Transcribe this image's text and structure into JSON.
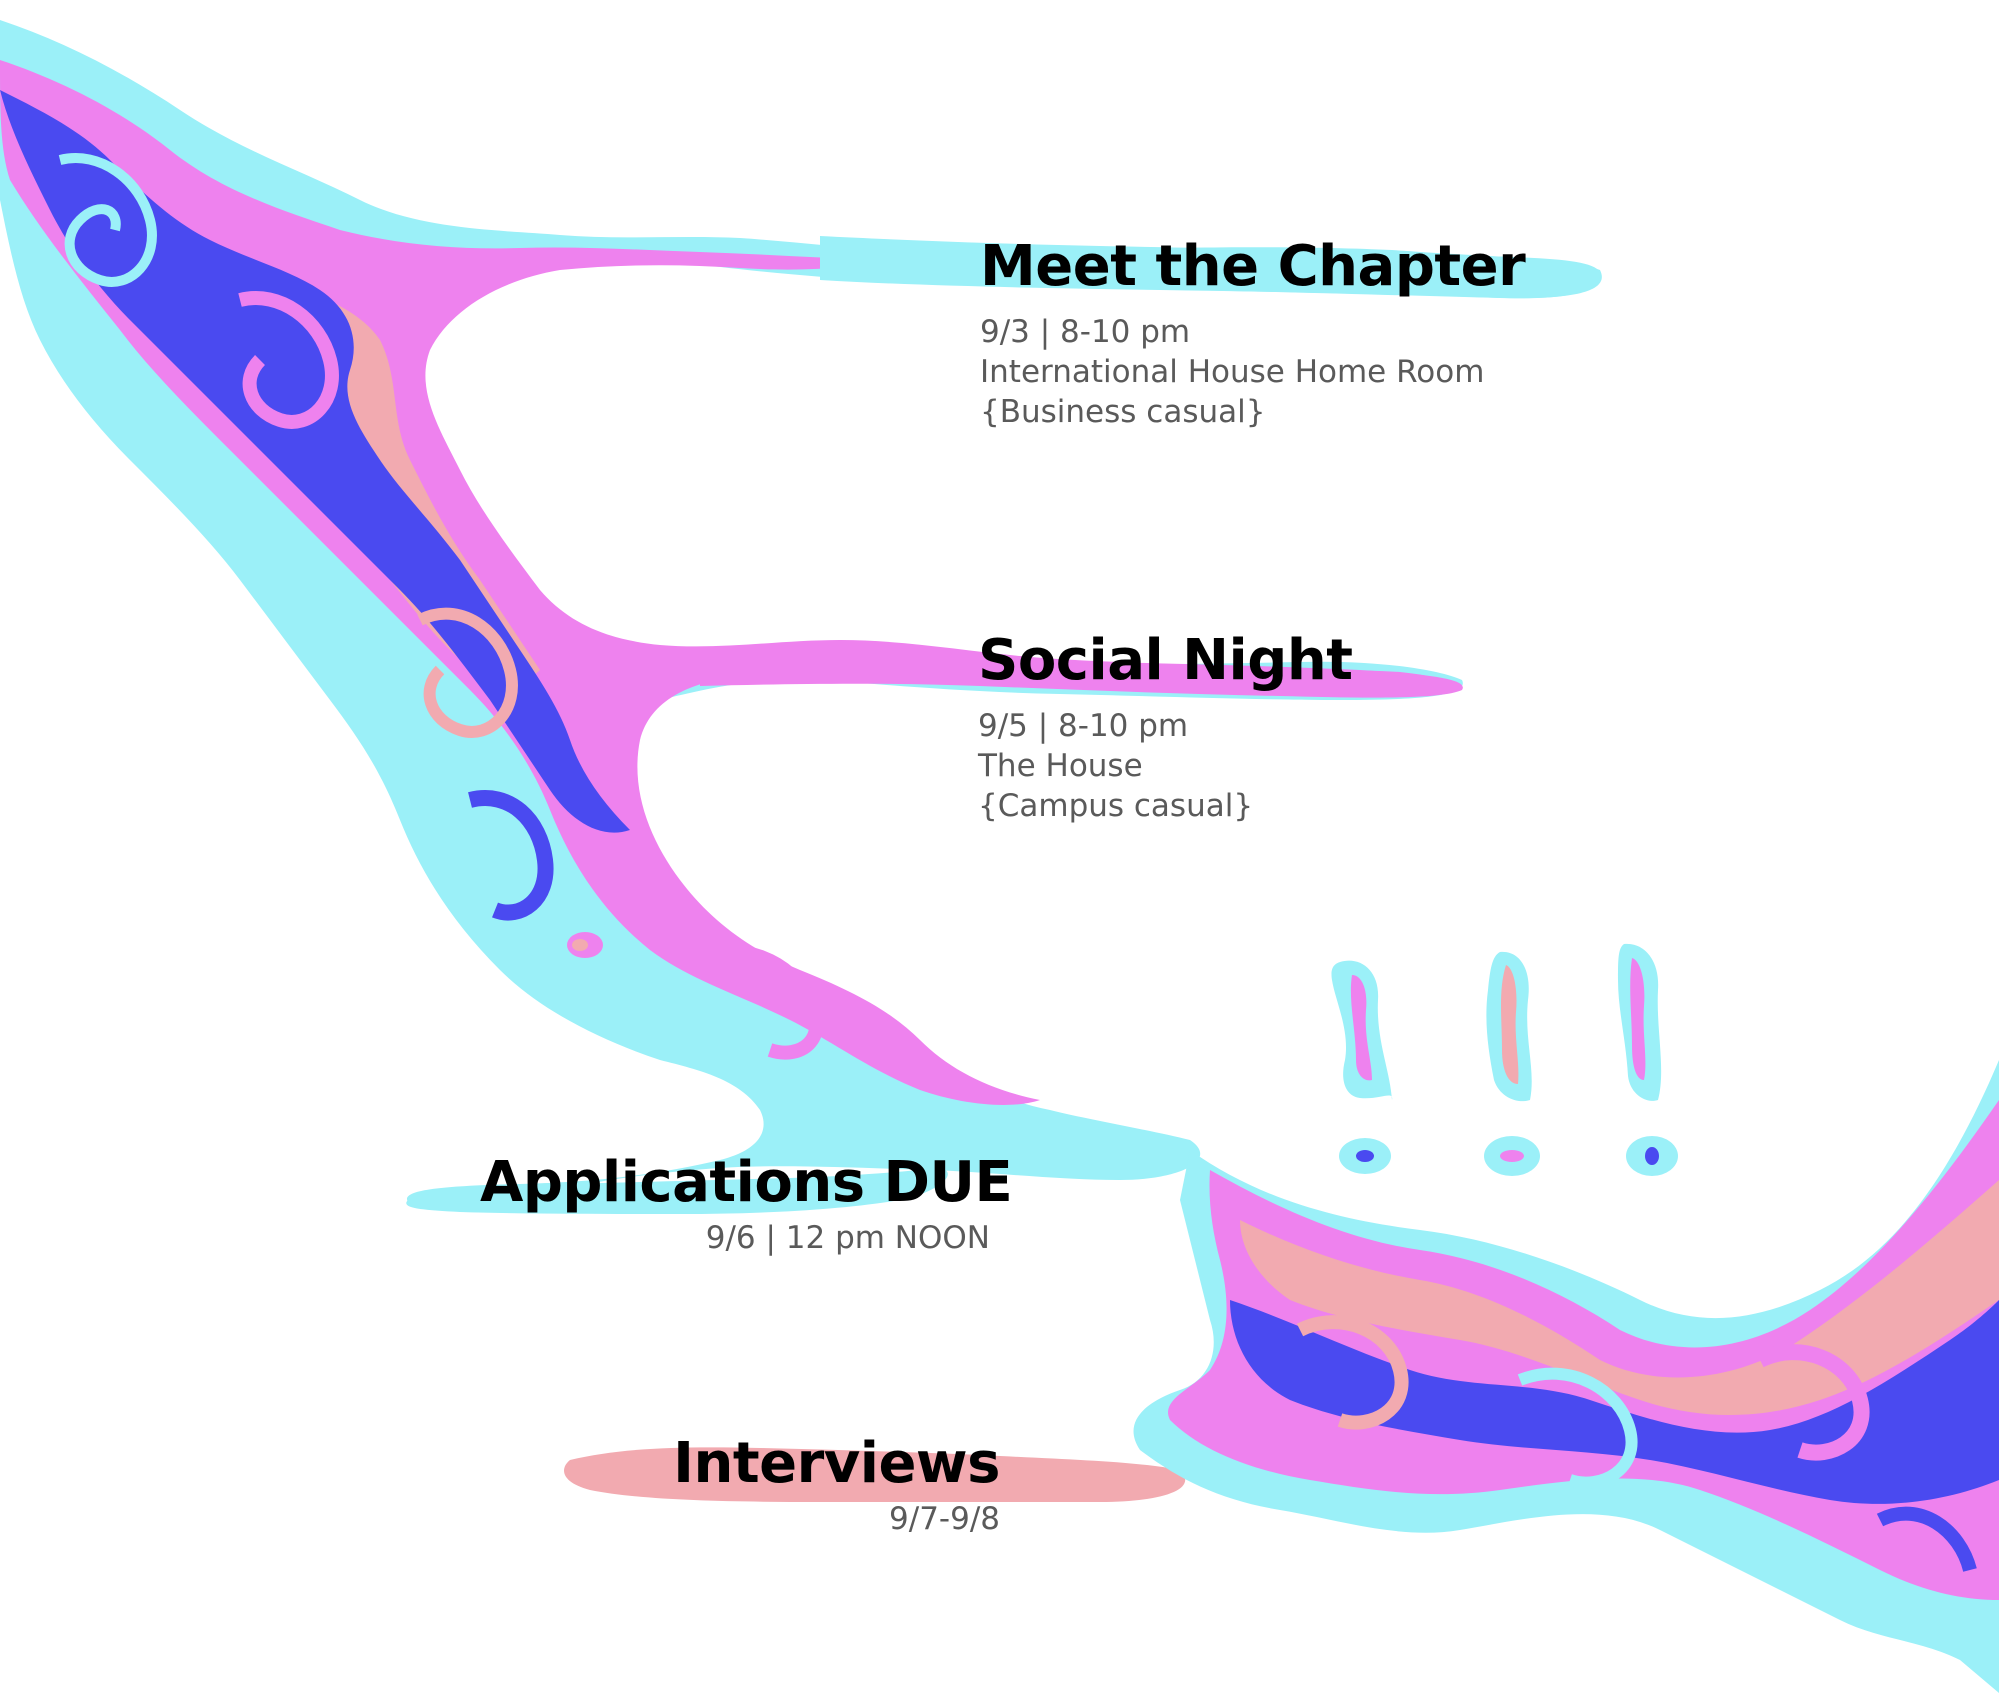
{
  "colors": {
    "blue": "#4a4af0",
    "pink": "#ee82ee",
    "salmon": "#f2aab0",
    "cyan": "#9bf0f8",
    "title": "#000000",
    "detail": "#5a5a5a"
  },
  "events": [
    {
      "title": "Meet the Chapter",
      "lines": [
        "9/3 | 8-10 pm",
        "International House Home Room",
        "{Business casual}"
      ]
    },
    {
      "title": "Social Night",
      "lines": [
        "9/5 | 8-10 pm",
        "The House",
        "{Campus casual}"
      ]
    },
    {
      "title": "Applications DUE",
      "lines": [
        "9/6 | 12 pm NOON"
      ]
    },
    {
      "title": "Interviews",
      "lines": [
        "9/7-9/8"
      ]
    }
  ],
  "decoration": {
    "exclamation_marks": 3
  }
}
